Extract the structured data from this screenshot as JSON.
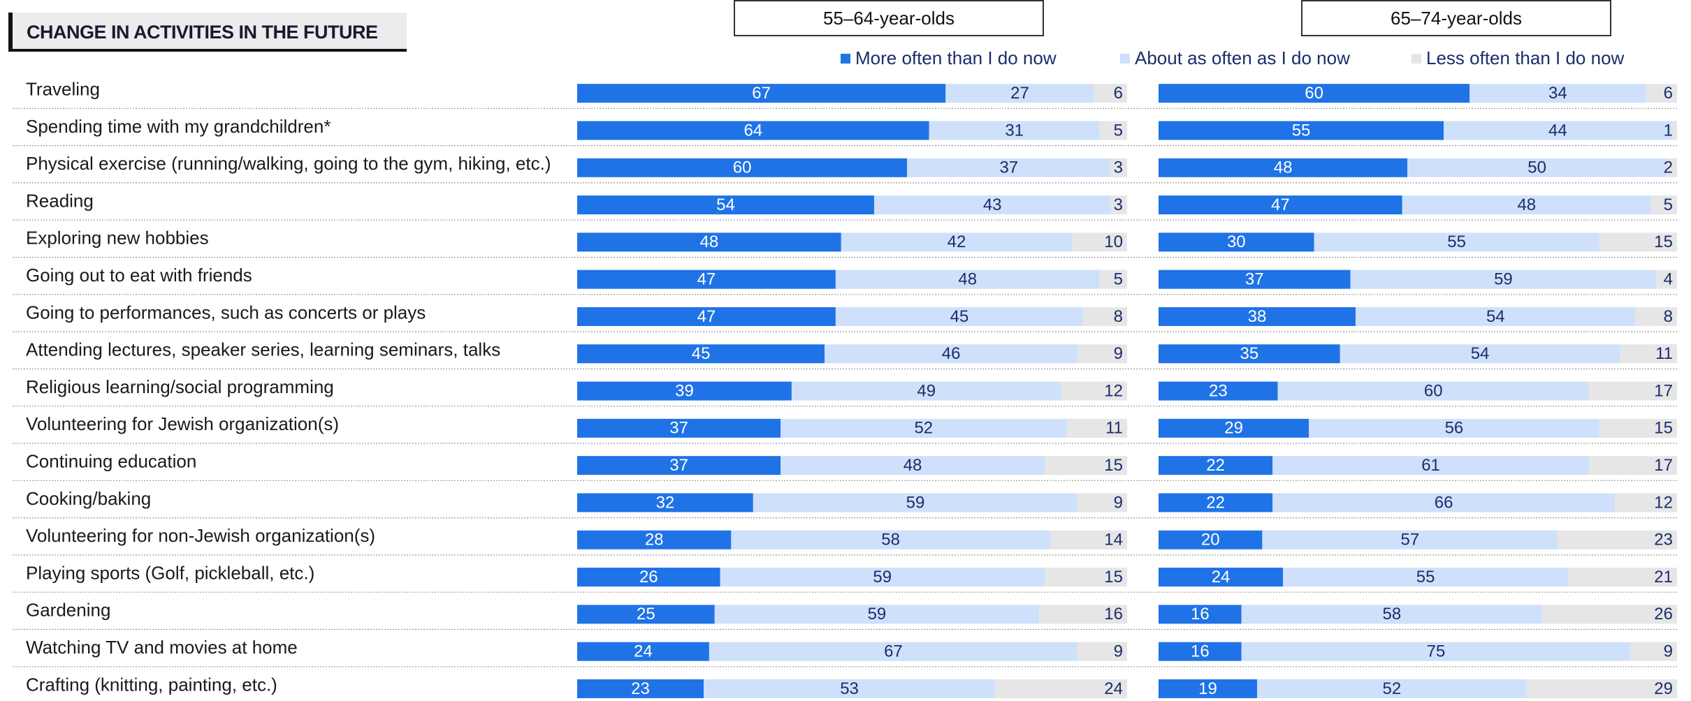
{
  "header": {
    "title": "CHANGE IN ACTIVITIES IN THE FUTURE",
    "group_left": "55–64-year-olds",
    "group_right": "65–74-year-olds"
  },
  "colors": {
    "more": "#1f73e6",
    "about": "#cfe0fa",
    "less": "#e6e6e6",
    "label_dark": "#1b2d6b"
  },
  "legend": {
    "more": "More often than I do now",
    "about": "About as often as I do now",
    "less": "Less often than I do now"
  },
  "chart_data": [
    {
      "type": "bar",
      "stacked": true,
      "orientation": "horizontal",
      "title": "55–64-year-olds",
      "categories": [
        "Traveling",
        "Spending time with my grandchildren*",
        "Physical exercise (running/walking, going to the gym, hiking, etc.)",
        "Reading",
        "Exploring new hobbies",
        "Going out to eat with friends",
        "Going to performances, such as concerts or plays",
        "Attending lectures, speaker series, learning seminars, talks",
        "Religious learning/social programming",
        "Volunteering for Jewish organization(s)",
        "Continuing education",
        "Cooking/baking",
        "Volunteering for non-Jewish organization(s)",
        "Playing sports (Golf, pickleball, etc.)",
        "Gardening",
        "Watching TV and movies at home",
        "Crafting (knitting, painting, etc.)"
      ],
      "series": [
        {
          "name": "More often than I do now",
          "values": [
            67,
            64,
            60,
            54,
            48,
            47,
            47,
            45,
            39,
            37,
            37,
            32,
            28,
            26,
            25,
            24,
            23
          ]
        },
        {
          "name": "About as often as I do now",
          "values": [
            27,
            31,
            37,
            43,
            42,
            48,
            45,
            46,
            49,
            52,
            48,
            59,
            58,
            59,
            59,
            67,
            53
          ]
        },
        {
          "name": "Less often than I do now",
          "values": [
            6,
            5,
            3,
            3,
            10,
            5,
            8,
            9,
            12,
            11,
            15,
            9,
            14,
            15,
            16,
            9,
            24
          ]
        }
      ],
      "xlim": [
        0,
        100
      ],
      "legend_position": "top"
    },
    {
      "type": "bar",
      "stacked": true,
      "orientation": "horizontal",
      "title": "65–74-year-olds",
      "categories": [
        "Traveling",
        "Spending time with my grandchildren*",
        "Physical exercise (running/walking, going to the gym, hiking, etc.)",
        "Reading",
        "Exploring new hobbies",
        "Going out to eat with friends",
        "Going to performances, such as concerts or plays",
        "Attending lectures, speaker series, learning seminars, talks",
        "Religious learning/social programming",
        "Volunteering for Jewish organization(s)",
        "Continuing education",
        "Cooking/baking",
        "Volunteering for non-Jewish organization(s)",
        "Playing sports (Golf, pickleball, etc.)",
        "Gardening",
        "Watching TV and movies at home",
        "Crafting (knitting, painting, etc.)"
      ],
      "series": [
        {
          "name": "More often than I do now",
          "values": [
            60,
            55,
            48,
            47,
            30,
            37,
            38,
            35,
            23,
            29,
            22,
            22,
            20,
            24,
            16,
            16,
            19
          ]
        },
        {
          "name": "About as often as I do now",
          "values": [
            34,
            44,
            50,
            48,
            55,
            59,
            54,
            54,
            60,
            56,
            61,
            66,
            57,
            55,
            58,
            75,
            52
          ]
        },
        {
          "name": "Less often than I do now",
          "values": [
            6,
            1,
            2,
            5,
            15,
            4,
            8,
            11,
            17,
            15,
            17,
            12,
            23,
            21,
            26,
            9,
            29
          ]
        }
      ],
      "xlim": [
        0,
        100
      ],
      "legend_position": "top"
    }
  ]
}
